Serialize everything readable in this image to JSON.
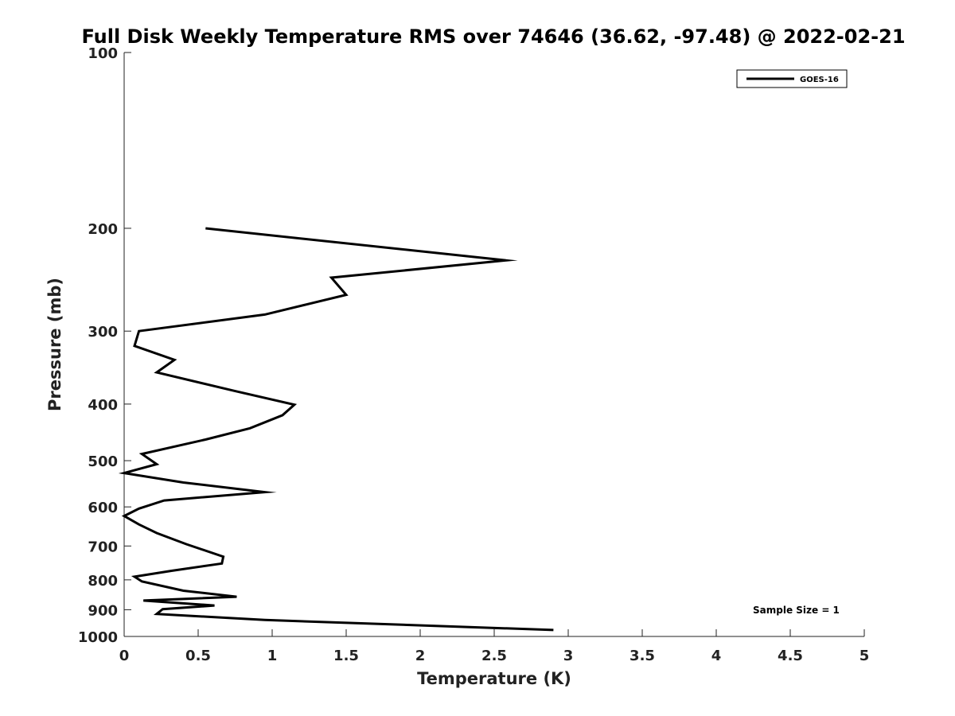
{
  "chart_data": {
    "type": "line",
    "title": "Full Disk Weekly Temperature RMS over 74646 (36.62, -97.48) @ 2022-02-21",
    "xlabel": "Temperature (K)",
    "ylabel": "Pressure (mb)",
    "xlim": [
      0,
      5
    ],
    "ylim": [
      100,
      1000
    ],
    "y_scale": "log",
    "y_reversed": true,
    "grid": false,
    "legend_position": "top-right",
    "x_ticks": [
      "0",
      "0.5",
      "1",
      "1.5",
      "2",
      "2.5",
      "3",
      "3.5",
      "4",
      "4.5",
      "5"
    ],
    "y_ticks": [
      "100",
      "200",
      "300",
      "400",
      "500",
      "600",
      "700",
      "800",
      "900",
      "1000"
    ],
    "annotation": "Sample Size = 1",
    "series": [
      {
        "name": "GOES-16",
        "color": "#000000",
        "points": [
          [
            0.55,
            200
          ],
          [
            2.58,
            227
          ],
          [
            1.4,
            243
          ],
          [
            1.5,
            260
          ],
          [
            0.95,
            281
          ],
          [
            0.1,
            300
          ],
          [
            0.07,
            318
          ],
          [
            0.34,
            336
          ],
          [
            0.22,
            353
          ],
          [
            0.75,
            380
          ],
          [
            1.15,
            401
          ],
          [
            1.07,
            418
          ],
          [
            0.85,
            440
          ],
          [
            0.55,
            460
          ],
          [
            0.12,
            487
          ],
          [
            0.22,
            507
          ],
          [
            0.0,
            525
          ],
          [
            0.4,
            545
          ],
          [
            0.95,
            566
          ],
          [
            0.27,
            585
          ],
          [
            0.1,
            604
          ],
          [
            0.0,
            622
          ],
          [
            0.1,
            643
          ],
          [
            0.22,
            665
          ],
          [
            0.42,
            695
          ],
          [
            0.67,
            730
          ],
          [
            0.66,
            750
          ],
          [
            0.32,
            772
          ],
          [
            0.07,
            790
          ],
          [
            0.12,
            805
          ],
          [
            0.4,
            835
          ],
          [
            0.76,
            855
          ],
          [
            0.13,
            868
          ],
          [
            0.61,
            885
          ],
          [
            0.26,
            898
          ],
          [
            0.22,
            915
          ],
          [
            0.95,
            937
          ],
          [
            2.9,
            975
          ]
        ]
      }
    ]
  }
}
